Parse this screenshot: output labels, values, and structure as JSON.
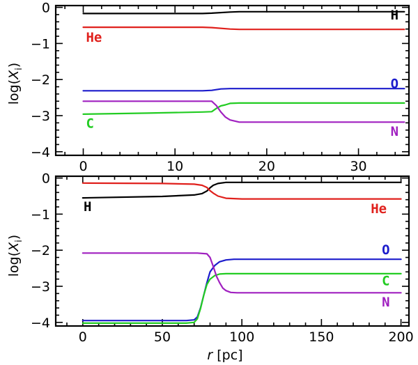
{
  "colors": {
    "H": "#000000",
    "He": "#e0201c",
    "O": "#1c1ccc",
    "C": "#22cc22",
    "N": "#a020c0"
  },
  "shared_xlabel": "r [pc]",
  "chart_data": [
    {
      "type": "line",
      "title": "",
      "xlabel": "",
      "ylabel": "log(X_i)",
      "xlim": [
        -3,
        35.5
      ],
      "ylim": [
        -4.1,
        0.05
      ],
      "xticks_major": [
        0,
        10,
        20,
        30
      ],
      "xticks_minor_step": 2,
      "yticks_major": [
        0,
        -1,
        -2,
        -3,
        -4
      ],
      "yticks_minor_step": 0.2,
      "series": [
        {
          "name": "H",
          "x": [
            0,
            13,
            14,
            16,
            17,
            35
          ],
          "y": [
            -0.17,
            -0.17,
            -0.16,
            -0.13,
            -0.12,
            -0.12
          ]
        },
        {
          "name": "He",
          "x": [
            0,
            13,
            14,
            16,
            17,
            35
          ],
          "y": [
            -0.55,
            -0.55,
            -0.56,
            -0.6,
            -0.61,
            -0.61
          ]
        },
        {
          "name": "O",
          "x": [
            0,
            13,
            14,
            15,
            16,
            17,
            35
          ],
          "y": [
            -2.31,
            -2.31,
            -2.3,
            -2.26,
            -2.25,
            -2.25,
            -2.25
          ]
        },
        {
          "name": "C",
          "x": [
            0,
            7,
            13,
            14,
            14.5,
            15,
            15.5,
            16,
            17,
            35
          ],
          "y": [
            -2.96,
            -2.93,
            -2.9,
            -2.89,
            -2.8,
            -2.73,
            -2.7,
            -2.66,
            -2.65,
            -2.65
          ]
        },
        {
          "name": "N",
          "x": [
            0,
            13,
            14,
            14.5,
            15,
            15.5,
            16,
            17,
            35
          ],
          "y": [
            -2.6,
            -2.6,
            -2.6,
            -2.72,
            -2.9,
            -3.04,
            -3.12,
            -3.18,
            -3.18
          ]
        }
      ],
      "labels": [
        {
          "series": "H",
          "text": "H",
          "x": 33.5,
          "y": -0.2
        },
        {
          "series": "He",
          "text": "He",
          "x": 0.3,
          "y": -0.82
        },
        {
          "series": "O",
          "text": "O",
          "x": 33.5,
          "y": -2.1
        },
        {
          "series": "C",
          "text": "C",
          "x": 0.3,
          "y": -3.2
        },
        {
          "series": "N",
          "text": "N",
          "x": 33.5,
          "y": -3.42
        }
      ]
    },
    {
      "type": "line",
      "title": "",
      "xlabel": "r [pc]",
      "ylabel": "log(X_i)",
      "xlim": [
        -17,
        205
      ],
      "ylim": [
        -4.1,
        0.05
      ],
      "xticks_major": [
        0,
        50,
        100,
        150,
        200
      ],
      "xticks_minor_step": 10,
      "yticks_major": [
        0,
        -1,
        -2,
        -3,
        -4
      ],
      "yticks_minor_step": 0.2,
      "series": [
        {
          "name": "H",
          "x": [
            0,
            50,
            70,
            75,
            78,
            80,
            82,
            85,
            90,
            100,
            200
          ],
          "y": [
            -0.55,
            -0.51,
            -0.47,
            -0.43,
            -0.36,
            -0.27,
            -0.2,
            -0.15,
            -0.12,
            -0.12,
            -0.12
          ]
        },
        {
          "name": "He",
          "x": [
            0,
            50,
            70,
            75,
            78,
            80,
            82,
            85,
            90,
            100,
            200
          ],
          "y": [
            -0.14,
            -0.15,
            -0.17,
            -0.2,
            -0.26,
            -0.35,
            -0.42,
            -0.5,
            -0.56,
            -0.58,
            -0.58
          ]
        },
        {
          "name": "O",
          "x": [
            0,
            65,
            70,
            72,
            74,
            76,
            78,
            80,
            83,
            86,
            90,
            95,
            200
          ],
          "y": [
            -3.95,
            -3.95,
            -3.93,
            -3.85,
            -3.6,
            -3.25,
            -2.9,
            -2.6,
            -2.42,
            -2.32,
            -2.27,
            -2.25,
            -2.25
          ]
        },
        {
          "name": "C",
          "x": [
            0,
            65,
            70,
            72,
            74,
            76,
            78,
            80,
            83,
            86,
            90,
            95,
            200
          ],
          "y": [
            -4.02,
            -4.02,
            -4.0,
            -3.9,
            -3.62,
            -3.25,
            -2.95,
            -2.8,
            -2.7,
            -2.66,
            -2.65,
            -2.65,
            -2.65
          ]
        },
        {
          "name": "N",
          "x": [
            0,
            72,
            78,
            80,
            82,
            84,
            86,
            88,
            90,
            93,
            97,
            200
          ],
          "y": [
            -2.08,
            -2.08,
            -2.1,
            -2.2,
            -2.45,
            -2.72,
            -2.9,
            -3.05,
            -3.12,
            -3.17,
            -3.18,
            -3.18
          ]
        }
      ],
      "labels": [
        {
          "series": "H",
          "text": "H",
          "x": 0.5,
          "y": -0.78
        },
        {
          "series": "He",
          "text": "He",
          "x": 181,
          "y": -0.84
        },
        {
          "series": "O",
          "text": "O",
          "x": 188,
          "y": -1.98
        },
        {
          "series": "C",
          "text": "C",
          "x": 188,
          "y": -2.84
        },
        {
          "series": "N",
          "text": "N",
          "x": 188,
          "y": -3.42
        }
      ]
    }
  ]
}
